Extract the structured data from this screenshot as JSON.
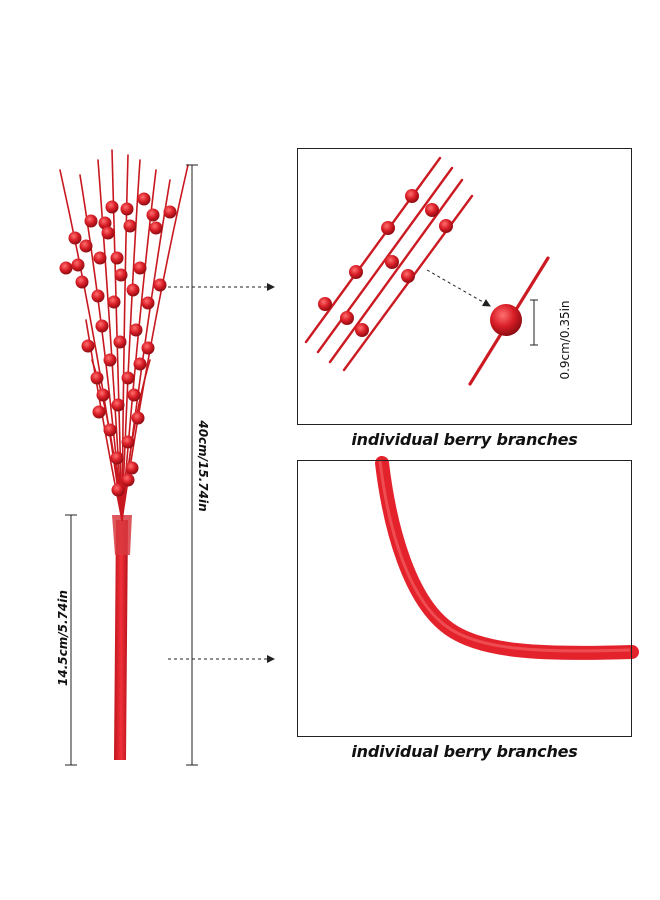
{
  "dimensions": {
    "total_length": "40cm/15.74in",
    "stem_length": "14.5cm/5.74in",
    "berry_diameter": "0.9cm/0.35in"
  },
  "captions": {
    "top": "individual berry branches",
    "bottom": "individual berry branches"
  },
  "colors": {
    "berry_red": "#d01c24",
    "stem_red": "#e8232b",
    "glitter_highlight": "#ff6a6a",
    "line": "#222222"
  }
}
